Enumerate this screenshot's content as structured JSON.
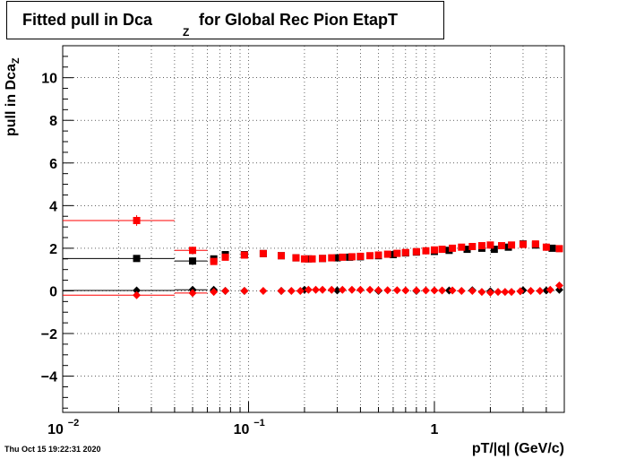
{
  "chart_data": {
    "type": "scatter",
    "title_main": "Fitted pull in Dca",
    "title_sub": "Z",
    "title_rest": " for Global Rec Pion EtapT",
    "xlabel": "pT/|q| (GeV/c)",
    "ylabel_main": "pull in Dca",
    "ylabel_sub": "Z",
    "xscale": "log",
    "xlim": [
      0.01,
      5
    ],
    "ylim": [
      -5.7,
      11.5
    ],
    "grid": true,
    "x_ticks": [
      {
        "value": 0.01,
        "label": "10",
        "exp": "−2"
      },
      {
        "value": 0.1,
        "label": "10",
        "exp": "−1"
      },
      {
        "value": 1,
        "label": "1",
        "exp": ""
      }
    ],
    "y_ticks": [
      {
        "value": -4,
        "label": "−4"
      },
      {
        "value": -2,
        "label": "−2"
      },
      {
        "value": 0,
        "label": "0"
      },
      {
        "value": 2,
        "label": "2"
      },
      {
        "value": 4,
        "label": "4"
      },
      {
        "value": 6,
        "label": "6"
      },
      {
        "value": 8,
        "label": "8"
      },
      {
        "value": 10,
        "label": "10"
      }
    ],
    "series": [
      {
        "color": "#000000",
        "marker": "square",
        "points": [
          {
            "x": 0.025,
            "y": 1.52,
            "xerr": [
              0.01,
              0.04
            ]
          },
          {
            "x": 0.05,
            "y": 1.4,
            "xerr": [
              0.04,
              0.06
            ]
          },
          {
            "x": 0.065,
            "y": 1.5
          },
          {
            "x": 0.075,
            "y": 1.7
          },
          {
            "x": 0.095,
            "y": 1.7
          },
          {
            "x": 0.12,
            "y": 1.75
          },
          {
            "x": 0.15,
            "y": 1.65
          },
          {
            "x": 0.18,
            "y": 1.55
          },
          {
            "x": 0.21,
            "y": 1.5
          },
          {
            "x": 0.25,
            "y": 1.52
          },
          {
            "x": 0.3,
            "y": 1.55
          },
          {
            "x": 0.35,
            "y": 1.58
          },
          {
            "x": 0.4,
            "y": 1.6
          },
          {
            "x": 0.5,
            "y": 1.65
          },
          {
            "x": 0.6,
            "y": 1.7
          },
          {
            "x": 0.7,
            "y": 1.78
          },
          {
            "x": 0.8,
            "y": 1.82
          },
          {
            "x": 1.0,
            "y": 1.85
          },
          {
            "x": 1.2,
            "y": 1.9
          },
          {
            "x": 1.5,
            "y": 1.95
          },
          {
            "x": 1.8,
            "y": 2.0
          },
          {
            "x": 2.1,
            "y": 1.95
          },
          {
            "x": 2.5,
            "y": 2.05
          },
          {
            "x": 3.0,
            "y": 2.2
          },
          {
            "x": 3.5,
            "y": 2.15
          },
          {
            "x": 4.3,
            "y": 2.0
          }
        ]
      },
      {
        "color": "#000000",
        "marker": "diamond",
        "points": [
          {
            "x": 0.025,
            "y": 0.02,
            "xerr": [
              0.01,
              0.04
            ]
          },
          {
            "x": 0.05,
            "y": 0.05,
            "xerr": [
              0.04,
              0.06
            ]
          },
          {
            "x": 0.065,
            "y": 0.05
          },
          {
            "x": 0.075,
            "y": 0.0
          },
          {
            "x": 0.095,
            "y": 0.0
          },
          {
            "x": 0.15,
            "y": 0.0
          },
          {
            "x": 0.2,
            "y": 0.05
          },
          {
            "x": 0.3,
            "y": 0.02
          },
          {
            "x": 0.5,
            "y": 0.0
          },
          {
            "x": 0.8,
            "y": 0.0
          },
          {
            "x": 1.2,
            "y": 0.02
          },
          {
            "x": 1.6,
            "y": 0.03
          },
          {
            "x": 2.0,
            "y": -0.02
          },
          {
            "x": 3.0,
            "y": 0.03
          },
          {
            "x": 4.0,
            "y": 0.02
          },
          {
            "x": 4.7,
            "y": 0.05
          }
        ]
      },
      {
        "color": "#ff0000",
        "marker": "square",
        "points": [
          {
            "x": 0.025,
            "y": 3.3,
            "xerr": [
              0.01,
              0.04
            ],
            "yerr": 0.25
          },
          {
            "x": 0.05,
            "y": 1.9,
            "xerr": [
              0.04,
              0.06
            ]
          },
          {
            "x": 0.065,
            "y": 1.38
          },
          {
            "x": 0.075,
            "y": 1.58
          },
          {
            "x": 0.095,
            "y": 1.68
          },
          {
            "x": 0.12,
            "y": 1.75
          },
          {
            "x": 0.15,
            "y": 1.65
          },
          {
            "x": 0.18,
            "y": 1.55
          },
          {
            "x": 0.2,
            "y": 1.5
          },
          {
            "x": 0.22,
            "y": 1.5
          },
          {
            "x": 0.25,
            "y": 1.52
          },
          {
            "x": 0.28,
            "y": 1.55
          },
          {
            "x": 0.32,
            "y": 1.58
          },
          {
            "x": 0.36,
            "y": 1.6
          },
          {
            "x": 0.4,
            "y": 1.62
          },
          {
            "x": 0.45,
            "y": 1.65
          },
          {
            "x": 0.5,
            "y": 1.68
          },
          {
            "x": 0.56,
            "y": 1.72
          },
          {
            "x": 0.63,
            "y": 1.76
          },
          {
            "x": 0.7,
            "y": 1.8
          },
          {
            "x": 0.8,
            "y": 1.84
          },
          {
            "x": 0.9,
            "y": 1.88
          },
          {
            "x": 1.0,
            "y": 1.92
          },
          {
            "x": 1.1,
            "y": 1.95
          },
          {
            "x": 1.25,
            "y": 2.0
          },
          {
            "x": 1.4,
            "y": 2.05
          },
          {
            "x": 1.6,
            "y": 2.08
          },
          {
            "x": 1.8,
            "y": 2.12
          },
          {
            "x": 2.0,
            "y": 2.15
          },
          {
            "x": 2.3,
            "y": 2.12
          },
          {
            "x": 2.6,
            "y": 2.15
          },
          {
            "x": 3.0,
            "y": 2.18
          },
          {
            "x": 3.5,
            "y": 2.2
          },
          {
            "x": 4.0,
            "y": 2.05
          },
          {
            "x": 4.7,
            "y": 1.98
          }
        ]
      },
      {
        "color": "#ff0000",
        "marker": "diamond",
        "points": [
          {
            "x": 0.025,
            "y": -0.2,
            "xerr": [
              0.01,
              0.04
            ]
          },
          {
            "x": 0.05,
            "y": -0.1,
            "xerr": [
              0.04,
              0.06
            ]
          },
          {
            "x": 0.065,
            "y": -0.05
          },
          {
            "x": 0.075,
            "y": 0.0
          },
          {
            "x": 0.095,
            "y": 0.0
          },
          {
            "x": 0.12,
            "y": 0.0
          },
          {
            "x": 0.15,
            "y": 0.0
          },
          {
            "x": 0.17,
            "y": 0.0
          },
          {
            "x": 0.19,
            "y": 0.0
          },
          {
            "x": 0.21,
            "y": 0.05
          },
          {
            "x": 0.23,
            "y": 0.05
          },
          {
            "x": 0.25,
            "y": 0.05
          },
          {
            "x": 0.28,
            "y": 0.05
          },
          {
            "x": 0.32,
            "y": 0.05
          },
          {
            "x": 0.36,
            "y": 0.05
          },
          {
            "x": 0.4,
            "y": 0.05
          },
          {
            "x": 0.45,
            "y": 0.05
          },
          {
            "x": 0.5,
            "y": 0.03
          },
          {
            "x": 0.56,
            "y": 0.03
          },
          {
            "x": 0.63,
            "y": 0.03
          },
          {
            "x": 0.7,
            "y": 0.02
          },
          {
            "x": 0.8,
            "y": 0.02
          },
          {
            "x": 0.9,
            "y": 0.02
          },
          {
            "x": 1.0,
            "y": 0.02
          },
          {
            "x": 1.1,
            "y": 0.02
          },
          {
            "x": 1.25,
            "y": 0.02
          },
          {
            "x": 1.4,
            "y": 0.0
          },
          {
            "x": 1.6,
            "y": 0.0
          },
          {
            "x": 1.8,
            "y": -0.05
          },
          {
            "x": 2.0,
            "y": -0.08
          },
          {
            "x": 2.2,
            "y": -0.05
          },
          {
            "x": 2.4,
            "y": -0.05
          },
          {
            "x": 2.6,
            "y": -0.05
          },
          {
            "x": 2.9,
            "y": -0.02
          },
          {
            "x": 3.3,
            "y": 0.0
          },
          {
            "x": 3.7,
            "y": 0.0
          },
          {
            "x": 4.2,
            "y": 0.05
          },
          {
            "x": 4.7,
            "y": 0.25
          }
        ]
      }
    ]
  },
  "timestamp": "Thu Oct 15 19:22:31 2020"
}
